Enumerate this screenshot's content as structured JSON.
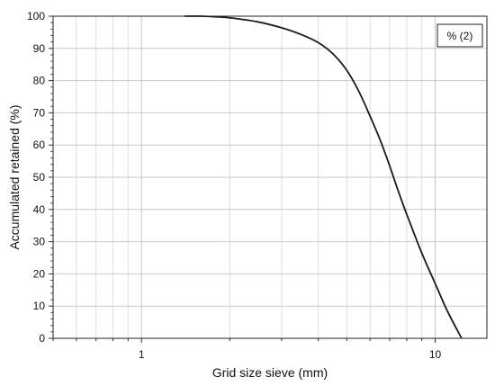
{
  "chart_data": {
    "type": "line",
    "title": "",
    "xlabel": "Grid size sieve (mm)",
    "ylabel": "Accumulated retained (%)",
    "xscale": "log",
    "xlim": [
      0.5,
      15
    ],
    "ylim": [
      0,
      100
    ],
    "grid": true,
    "legend_position": "top-right",
    "x_tick_labels": [
      "1",
      "10"
    ],
    "x_ticks": [
      1,
      10
    ],
    "y_ticks": [
      0,
      10,
      20,
      30,
      40,
      50,
      60,
      70,
      80,
      90,
      100
    ],
    "series": [
      {
        "name": "% (2)",
        "color": "#1a1a1a",
        "x": [
          1.4,
          1.6,
          1.8,
          2.0,
          2.5,
          3.0,
          3.5,
          4.0,
          4.5,
          5.0,
          5.5,
          6.0,
          6.5,
          7.0,
          7.5,
          8.0,
          9.0,
          10.0,
          11.0,
          12.3
        ],
        "y": [
          100,
          100,
          99.8,
          99.5,
          98.2,
          96.4,
          94.3,
          91.8,
          88.2,
          83.2,
          76.6,
          69.0,
          61.5,
          53.5,
          45.5,
          38.5,
          26.5,
          17.0,
          8.5,
          0
        ]
      }
    ]
  }
}
